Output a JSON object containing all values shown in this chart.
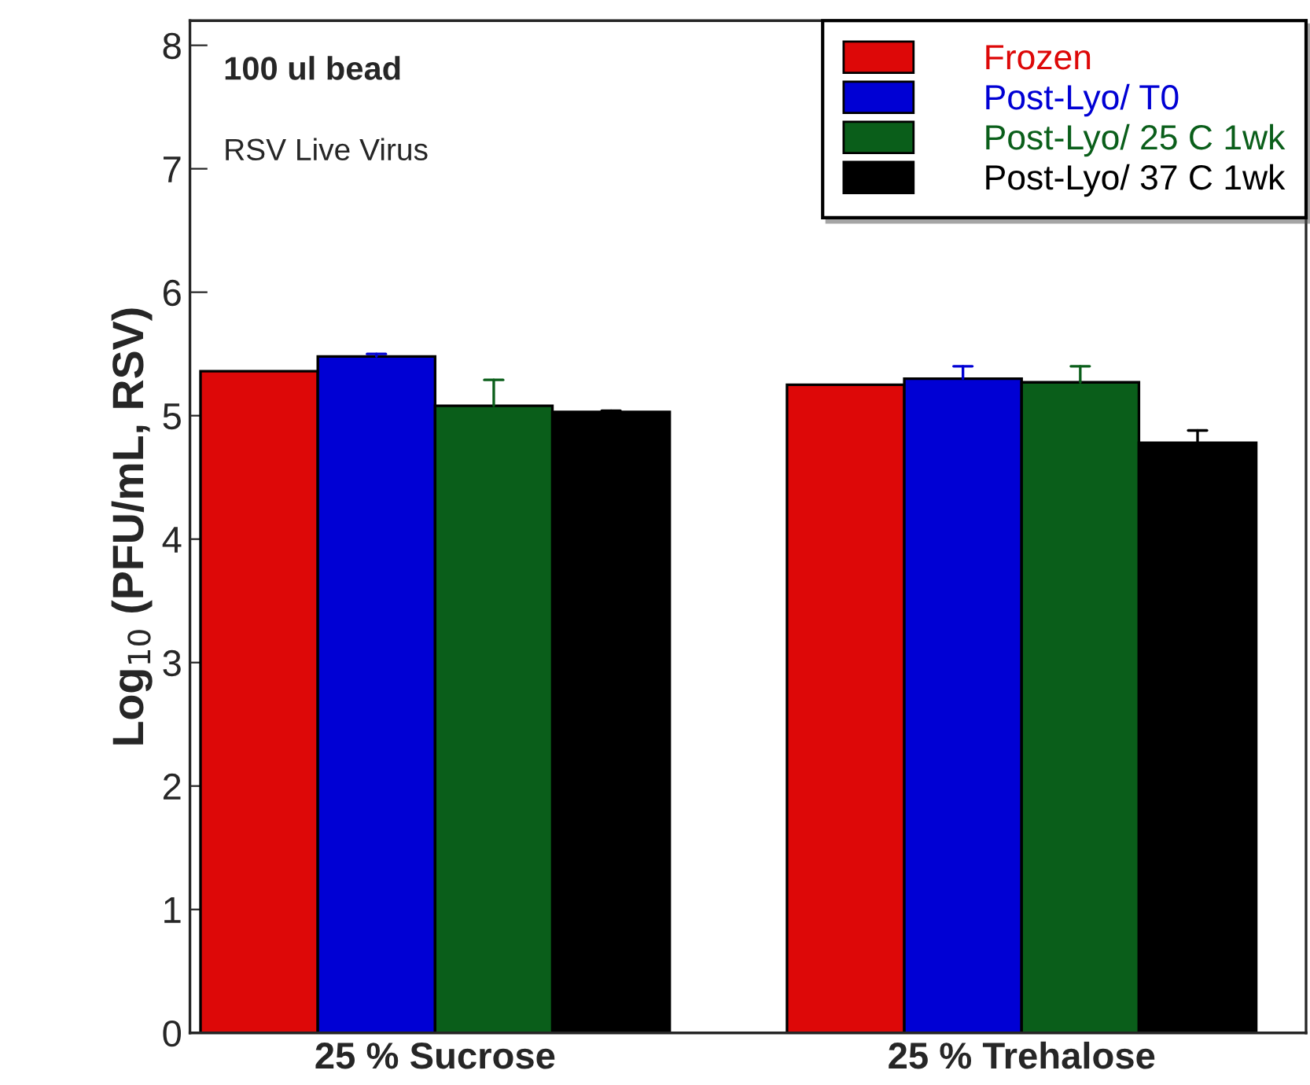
{
  "chart_data": {
    "type": "bar",
    "ylabel": "Log$_{10}$ (PFU/mL, RSV)",
    "annotations": [
      "100 ul bead",
      "RSV Live Virus"
    ],
    "categories": [
      "25 % Sucrose",
      "25 % Trehalose"
    ],
    "series": [
      {
        "name": "Frozen",
        "color": "#dd0808",
        "values": [
          5.36,
          5.25
        ]
      },
      {
        "name": "Post-Lyo/ T0",
        "color": "#0000d4",
        "values": [
          5.48,
          5.3
        ],
        "errors": [
          [
            5.48,
            5.5
          ],
          [
            5.3,
            5.4
          ]
        ]
      },
      {
        "name": "Post-Lyo/ 25 C 1wk",
        "color": "#0a5e1a",
        "values": [
          5.08,
          5.27
        ],
        "errors": [
          [
            5.08,
            5.29
          ],
          [
            5.27,
            5.4
          ]
        ]
      },
      {
        "name": "Post-Lyo/ 37 C 1wk",
        "color": "#000000",
        "values": [
          5.03,
          4.78
        ],
        "errors": [
          [
            5.03,
            5.04
          ],
          [
            4.78,
            4.88
          ]
        ]
      }
    ],
    "ylim": [
      0,
      8.2
    ],
    "yticks": [
      0,
      1,
      2,
      3,
      4,
      5,
      6,
      7,
      8
    ],
    "grid": false,
    "legend": "top right"
  }
}
